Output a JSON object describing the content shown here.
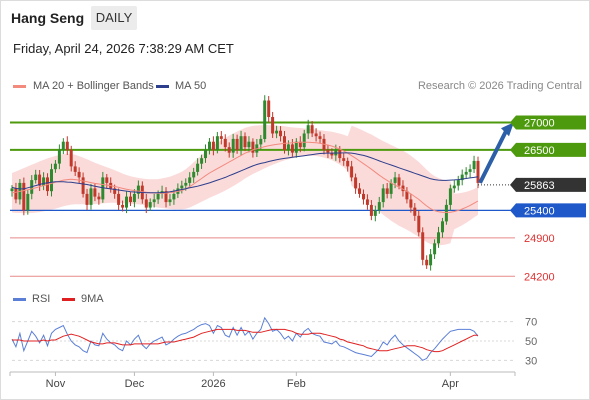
{
  "header": {
    "instrument": "Hang Seng",
    "timeframe": "DAILY",
    "timestamp": "Friday, April 24, 2026 7:38:29 AM CET"
  },
  "legend": {
    "ma20": "MA 20 + Bollinger Bands",
    "ma50": "MA 50",
    "rsi": "RSI",
    "ma9": "9MA"
  },
  "credit": "Research © 2026 Trading Central",
  "colors": {
    "ma20": "#f28a7e",
    "bands_fill": "#fbdada",
    "ma50": "#2c3e8c",
    "resistance": "#4e9a0e",
    "support": "#1f58c9",
    "support_secondary": "#e88a8a",
    "candle_up": "#2f8a2f",
    "candle_down": "#c0392b",
    "current": "#333333",
    "rsi": "#5b7fd6",
    "rsi_ma9": "#e02020"
  },
  "chart_data": {
    "type": "candlestick",
    "title": "Hang Seng",
    "ylim": [
      23950,
      27500
    ],
    "x_ticks": [
      {
        "label": "Nov",
        "index": 11
      },
      {
        "label": "Dec",
        "index": 31
      },
      {
        "label": "2026",
        "index": 51
      },
      {
        "label": "Feb",
        "index": 72
      },
      {
        "label": "Apr",
        "index": 111
      }
    ],
    "closes": [
      25800,
      25600,
      25900,
      25400,
      25700,
      25950,
      26050,
      25850,
      26000,
      25750,
      26150,
      26250,
      26500,
      26650,
      26500,
      26200,
      26100,
      26000,
      25700,
      25500,
      25800,
      25650,
      25600,
      26000,
      25900,
      25800,
      25700,
      25500,
      25450,
      25650,
      25550,
      25700,
      25850,
      25600,
      25450,
      25550,
      25600,
      25700,
      25750,
      25550,
      25600,
      25700,
      25800,
      25850,
      25900,
      26000,
      26100,
      26250,
      26350,
      26500,
      26650,
      26500,
      26750,
      26700,
      26550,
      26450,
      26700,
      26500,
      26750,
      26550,
      26650,
      26450,
      26600,
      26700,
      27400,
      27100,
      26800,
      26850,
      26750,
      26500,
      26600,
      26450,
      26650,
      26550,
      26800,
      26950,
      26800,
      26750,
      26700,
      26500,
      26450,
      26400,
      26500,
      26350,
      26300,
      26200,
      26000,
      25800,
      25700,
      25600,
      25500,
      25300,
      25400,
      25550,
      25800,
      25700,
      25900,
      26000,
      25850,
      25750,
      25600,
      25450,
      25300,
      25000,
      24500,
      24400,
      24600,
      24800,
      25000,
      25200,
      25500,
      25800,
      25850,
      25950,
      26050,
      26100,
      26150,
      26300,
      25900
    ],
    "series": [
      {
        "name": "MA 20",
        "values": [
          25720,
          25730,
          25745,
          25760,
          25775,
          25790,
          25810,
          25830,
          25850,
          25870,
          25890,
          25910,
          25930,
          25950,
          25960,
          25965,
          25960,
          25950,
          25935,
          25920,
          25905,
          25890,
          25880,
          25870,
          25860,
          25850,
          25835,
          25820,
          25800,
          25785,
          25770,
          25760,
          25750,
          25740,
          25730,
          25720,
          25715,
          25710,
          25712,
          25715,
          25720,
          25730,
          25745,
          25760,
          25790,
          25830,
          25880,
          25930,
          25980,
          26030,
          26080,
          26120,
          26160,
          26200,
          26240,
          26280,
          26320,
          26360,
          26400,
          26440,
          26470,
          26500,
          26520,
          26540,
          26560,
          26575,
          26590,
          26600,
          26610,
          26620,
          26625,
          26630,
          26635,
          26640,
          26640,
          26640,
          26635,
          26630,
          26620,
          26605,
          26590,
          26570,
          26545,
          26515,
          26480,
          26440,
          26395,
          26350,
          26300,
          26250,
          26200,
          26150,
          26095,
          26040,
          25990,
          25945,
          25900,
          25860,
          25820,
          25785,
          25745,
          25700,
          25650,
          25600,
          25540,
          25480,
          25430,
          25395,
          25375,
          25365,
          25360,
          25365,
          25380,
          25400,
          25425,
          25455,
          25490,
          25530,
          25570
        ]
      },
      {
        "name": "MA 50",
        "values": [
          25820,
          25800,
          25790,
          25790,
          25810,
          25830,
          25850,
          25870,
          25890,
          25900,
          25910,
          25920,
          25920,
          25920,
          25915,
          25910,
          25900,
          25890,
          25880,
          25870,
          25855,
          25840,
          25825,
          25810,
          25800,
          25790,
          25780,
          25770,
          25760,
          25750,
          25740,
          25735,
          25730,
          25725,
          25722,
          25720,
          25720,
          25722,
          25725,
          25730,
          25740,
          25750,
          25765,
          25780,
          25795,
          25810,
          25825,
          25840,
          25860,
          25880,
          25900,
          25925,
          25950,
          25975,
          26000,
          26030,
          26060,
          26090,
          26120,
          26150,
          26180,
          26210,
          26235,
          26255,
          26270,
          26290,
          26305,
          26320,
          26335,
          26345,
          26355,
          26365,
          26375,
          26385,
          26395,
          26405,
          26415,
          26425,
          26435,
          26440,
          26442,
          26443,
          26444,
          26445,
          26446,
          26446,
          26442,
          26430,
          26415,
          26400,
          26380,
          26355,
          26330,
          26300,
          26275,
          26250,
          26225,
          26200,
          26175,
          26150,
          26125,
          26100,
          26075,
          26050,
          26025,
          26000,
          25975,
          25960,
          25950,
          25945,
          25945,
          25950,
          25955,
          25960,
          25970,
          25980,
          25990,
          26000,
          26010
        ]
      },
      {
        "name": "RSI",
        "values": [
          52,
          44,
          58,
          40,
          50,
          60,
          55,
          48,
          56,
          45,
          58,
          62,
          64,
          66,
          57,
          50,
          46,
          44,
          40,
          38,
          50,
          46,
          45,
          58,
          52,
          48,
          46,
          42,
          40,
          50,
          46,
          52,
          56,
          46,
          42,
          47,
          50,
          52,
          54,
          46,
          48,
          52,
          55,
          57,
          58,
          60,
          62,
          65,
          67,
          68,
          66,
          58,
          66,
          64,
          56,
          54,
          64,
          56,
          64,
          56,
          60,
          52,
          58,
          62,
          74,
          68,
          60,
          62,
          58,
          52,
          55,
          50,
          58,
          54,
          60,
          63,
          58,
          56,
          55,
          49,
          48,
          47,
          50,
          45,
          44,
          42,
          40,
          38,
          37,
          36,
          35,
          34,
          38,
          42,
          49,
          46,
          52,
          56,
          50,
          46,
          43,
          40,
          37,
          34,
          30,
          32,
          38,
          42,
          47,
          52,
          56,
          60,
          61,
          62,
          62,
          62,
          62,
          60,
          55
        ]
      },
      {
        "name": "9MA",
        "values": [
          51,
          51,
          51,
          50,
          50,
          50,
          50,
          50,
          51,
          50,
          51,
          51,
          53,
          55,
          56,
          57,
          56,
          55,
          53,
          51,
          49,
          48,
          47,
          47,
          48,
          48,
          48,
          47,
          46,
          46,
          46,
          47,
          47,
          47,
          47,
          47,
          47,
          47,
          48,
          49,
          49,
          49,
          50,
          51,
          52,
          53,
          54,
          56,
          58,
          59,
          60,
          61,
          62,
          62,
          62,
          62,
          62,
          61,
          61,
          61,
          60,
          59,
          59,
          59,
          60,
          61,
          62,
          62,
          62,
          62,
          61,
          60,
          58,
          57,
          57,
          57,
          58,
          58,
          58,
          57,
          56,
          55,
          54,
          52,
          51,
          49,
          48,
          47,
          46,
          45,
          43,
          42,
          41,
          40,
          40,
          40,
          41,
          42,
          43,
          44,
          45,
          45,
          45,
          44,
          43,
          41,
          40,
          39,
          39,
          40,
          42,
          44,
          46,
          48,
          50,
          52,
          54,
          56,
          56
        ]
      }
    ],
    "levels": {
      "resistance": [
        27000,
        26500
      ],
      "current": 25863,
      "support": [
        25400,
        24900,
        24200
      ],
      "labels": [
        "27000",
        "26500",
        "25863",
        "25400",
        "24900",
        "24200"
      ]
    },
    "rsi_axis": {
      "ticks": [
        70,
        50,
        30
      ],
      "labels": [
        "70",
        "50",
        "30"
      ],
      "ylim": [
        20,
        80
      ]
    },
    "forecast": {
      "from": 25900,
      "to": 26950,
      "direction": "up"
    }
  }
}
